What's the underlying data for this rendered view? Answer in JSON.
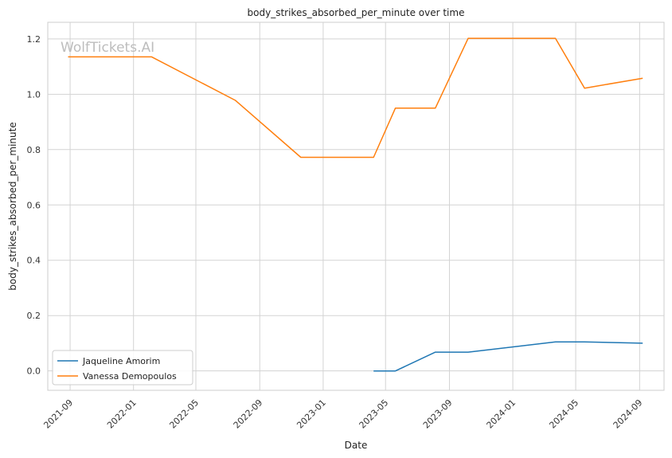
{
  "chart_data": {
    "type": "line",
    "title": "body_strikes_absorbed_per_minute over time",
    "xlabel": "Date",
    "ylabel": "body_strikes_absorbed_per_minute",
    "watermark": "WolfTickets.AI",
    "x_ticks": [
      "2021-09",
      "2022-01",
      "2022-05",
      "2022-09",
      "2023-01",
      "2023-05",
      "2023-09",
      "2024-01",
      "2024-05",
      "2024-09"
    ],
    "y_ticks": [
      "0.0",
      "0.2",
      "0.4",
      "0.6",
      "0.8",
      "1.0",
      "1.2"
    ],
    "xlim": [
      "2021-07-20",
      "2024-10-18"
    ],
    "ylim": [
      -0.07,
      1.26
    ],
    "grid": true,
    "legend_position": "lower-left",
    "series": [
      {
        "name": "Jaqueline Amorim",
        "color": "#1f77b4",
        "points": [
          {
            "x": "2023-04-08",
            "y": 0.0
          },
          {
            "x": "2023-05-20",
            "y": 0.0
          },
          {
            "x": "2023-08-05",
            "y": 0.068
          },
          {
            "x": "2023-10-07",
            "y": 0.068
          },
          {
            "x": "2024-03-23",
            "y": 0.105
          },
          {
            "x": "2024-05-18",
            "y": 0.105
          },
          {
            "x": "2024-09-07",
            "y": 0.1
          }
        ]
      },
      {
        "name": "Vanessa Demopoulos",
        "color": "#ff7f0e",
        "points": [
          {
            "x": "2021-08-28",
            "y": 1.135
          },
          {
            "x": "2022-02-05",
            "y": 1.135
          },
          {
            "x": "2022-07-16",
            "y": 0.978
          },
          {
            "x": "2022-11-19",
            "y": 0.772
          },
          {
            "x": "2023-04-08",
            "y": 0.772
          },
          {
            "x": "2023-05-20",
            "y": 0.95
          },
          {
            "x": "2023-08-05",
            "y": 0.95
          },
          {
            "x": "2023-10-07",
            "y": 1.202
          },
          {
            "x": "2024-03-23",
            "y": 1.202
          },
          {
            "x": "2024-05-18",
            "y": 1.022
          },
          {
            "x": "2024-09-07",
            "y": 1.058
          }
        ]
      }
    ]
  }
}
